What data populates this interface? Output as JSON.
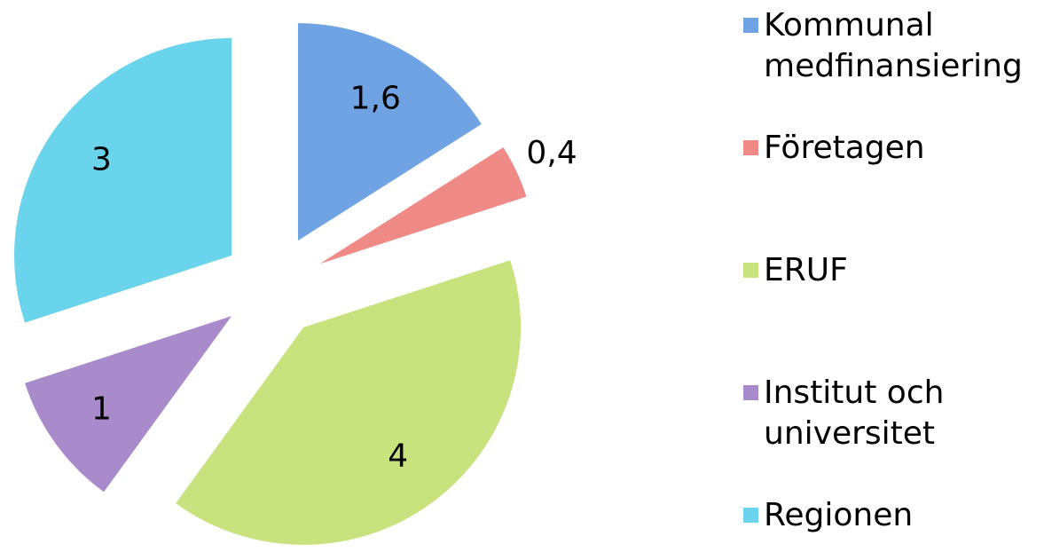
{
  "chart_data": {
    "type": "pie",
    "categories": [
      "Kommunal medfinansiering",
      "Företagen",
      "ERUF",
      "Institut och universitet",
      "Regionen"
    ],
    "values": [
      1.6,
      0.4,
      4,
      1,
      3
    ],
    "value_labels": [
      "1,6",
      "0,4",
      "4",
      "1",
      "3"
    ],
    "colors": [
      "#6fa3e3",
      "#f08a86",
      "#c8e27e",
      "#a98bcb",
      "#6ad4ec"
    ],
    "legend": "right"
  }
}
